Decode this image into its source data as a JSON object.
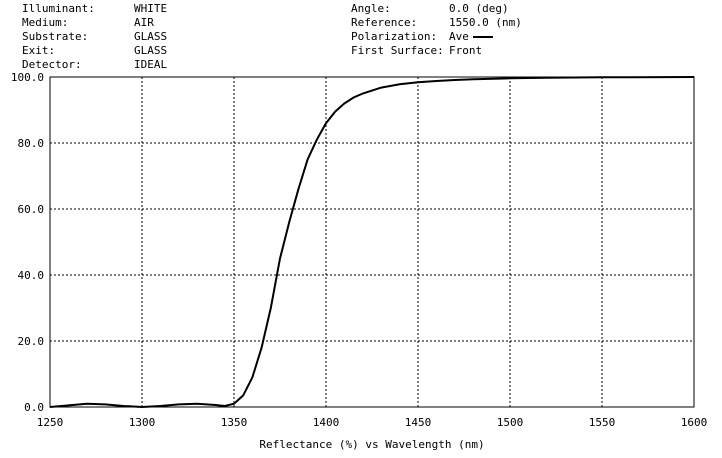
{
  "header": {
    "left": [
      {
        "label": "Illuminant:",
        "value": "WHITE"
      },
      {
        "label": "Medium:",
        "value": "AIR"
      },
      {
        "label": "Substrate:",
        "value": "GLASS"
      },
      {
        "label": "Exit:",
        "value": "GLASS"
      },
      {
        "label": "Detector:",
        "value": "IDEAL"
      }
    ],
    "right": [
      {
        "label": "Angle:",
        "value": "0.0 (deg)"
      },
      {
        "label": "Reference:",
        "value": "1550.0 (nm)"
      },
      {
        "label": "Polarization:",
        "value": "Ave"
      },
      {
        "label": "First Surface:",
        "value": "Front"
      }
    ]
  },
  "chart_data": {
    "type": "line",
    "xlabel": "Reflectance (%)  vs  Wavelength (nm)",
    "xlim": [
      1250,
      1600
    ],
    "ylim": [
      0,
      100
    ],
    "xticks": [
      1250,
      1300,
      1350,
      1400,
      1450,
      1500,
      1550,
      1600
    ],
    "yticks": [
      "0.0",
      "20.0",
      "40.0",
      "60.0",
      "80.0",
      "100.0"
    ],
    "grid": true,
    "series": [
      {
        "x": [
          1250,
          1260,
          1270,
          1280,
          1290,
          1300,
          1310,
          1320,
          1330,
          1340,
          1345,
          1350,
          1355,
          1360,
          1365,
          1370,
          1375,
          1380,
          1385,
          1390,
          1395,
          1400,
          1405,
          1410,
          1415,
          1420,
          1430,
          1440,
          1450,
          1460,
          1470,
          1480,
          1500,
          1520,
          1550,
          1600
        ],
        "y": [
          0,
          0.5,
          1.0,
          0.8,
          0.3,
          0,
          0.3,
          0.8,
          1.0,
          0.6,
          0.3,
          1.0,
          3.5,
          9,
          18,
          30,
          45,
          56,
          66,
          75,
          81,
          86,
          89.5,
          92,
          93.8,
          95,
          96.8,
          97.8,
          98.4,
          98.8,
          99.1,
          99.3,
          99.6,
          99.8,
          99.9,
          100
        ]
      }
    ]
  }
}
